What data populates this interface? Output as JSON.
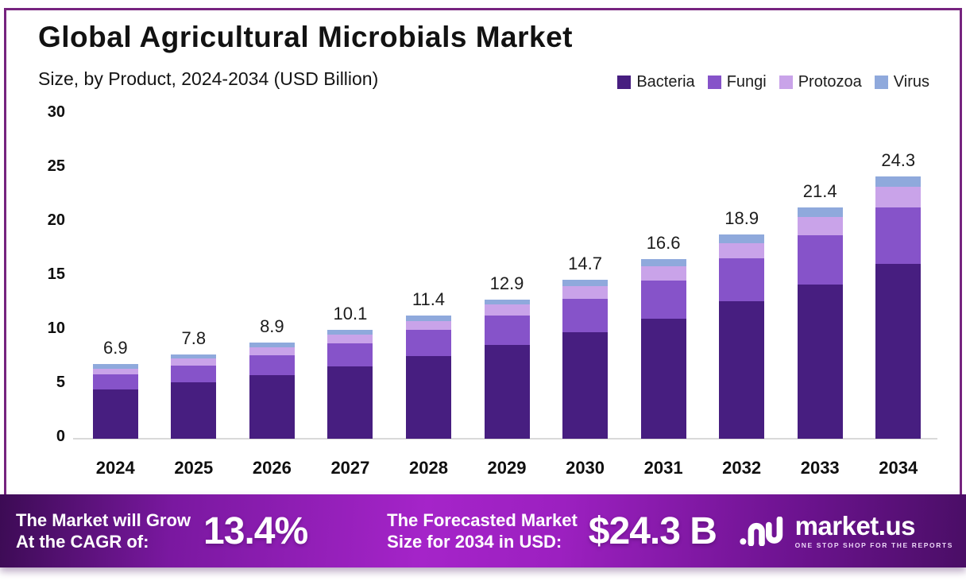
{
  "header": {
    "title": "Global Agricultural Microbials Market",
    "subtitle": "Size, by Product, 2024-2034 (USD Billion)"
  },
  "legend": {
    "items": [
      {
        "label": "Bacteria",
        "color": "#471e80"
      },
      {
        "label": "Fungi",
        "color": "#8653c9"
      },
      {
        "label": "Protozoa",
        "color": "#c9a3e9"
      },
      {
        "label": "Virus",
        "color": "#8fa9dc"
      }
    ]
  },
  "chart_data": {
    "type": "bar",
    "stacked": true,
    "title": "Global Agricultural Microbials Market Size, by Product, 2024-2034 (USD Billion)",
    "categories": [
      "2024",
      "2025",
      "2026",
      "2027",
      "2028",
      "2029",
      "2030",
      "2031",
      "2032",
      "2033",
      "2034"
    ],
    "series": [
      {
        "name": "Bacteria",
        "color": "#471e80",
        "values": [
          4.55,
          5.25,
          5.85,
          6.7,
          7.65,
          8.65,
          9.85,
          11.1,
          12.7,
          14.3,
          16.2
        ]
      },
      {
        "name": "Fungi",
        "color": "#8653c9",
        "values": [
          1.4,
          1.55,
          1.9,
          2.1,
          2.45,
          2.75,
          3.1,
          3.55,
          4.0,
          4.55,
          5.2
        ]
      },
      {
        "name": "Protozoa",
        "color": "#c9a3e9",
        "values": [
          0.55,
          0.6,
          0.68,
          0.8,
          0.75,
          1.0,
          1.15,
          1.3,
          1.37,
          1.65,
          1.9
        ]
      },
      {
        "name": "Virus",
        "color": "#8fa9dc",
        "values": [
          0.4,
          0.4,
          0.47,
          0.5,
          0.55,
          0.5,
          0.6,
          0.65,
          0.83,
          0.9,
          1.0
        ]
      }
    ],
    "totals": [
      6.9,
      7.8,
      8.9,
      10.1,
      11.4,
      12.9,
      14.7,
      16.6,
      18.9,
      21.4,
      24.3
    ],
    "total_labels": [
      "6.9",
      "7.8",
      "8.9",
      "10.1",
      "11.4",
      "12.9",
      "14.7",
      "16.6",
      "18.9",
      "21.4",
      "24.3"
    ],
    "xlabel": "",
    "ylabel": "",
    "ylim": [
      0,
      30
    ],
    "y_ticks": [
      30,
      25,
      20,
      15,
      10,
      5,
      0
    ],
    "grid": false,
    "legend_position": "top-right"
  },
  "banner": {
    "cagr": {
      "label_line1": "The Market will Grow",
      "label_line2": "At the CAGR of:",
      "value": "13.4%"
    },
    "forecast": {
      "label_line1": "The Forecasted Market",
      "label_line2": "Size for 2034 in USD:",
      "value": "$24.3 B"
    },
    "logo": {
      "name": "market.us",
      "tagline": "ONE STOP SHOP FOR THE REPORTS"
    }
  },
  "colors": {
    "frame_border": "#76247f",
    "baseline": "#d9d9d9",
    "value_text": "#1c1c1c",
    "banner_gradient_left": "#3c0b54",
    "banner_gradient_mid": "#a524c9",
    "banner_gradient_right": "#4a0e66"
  }
}
